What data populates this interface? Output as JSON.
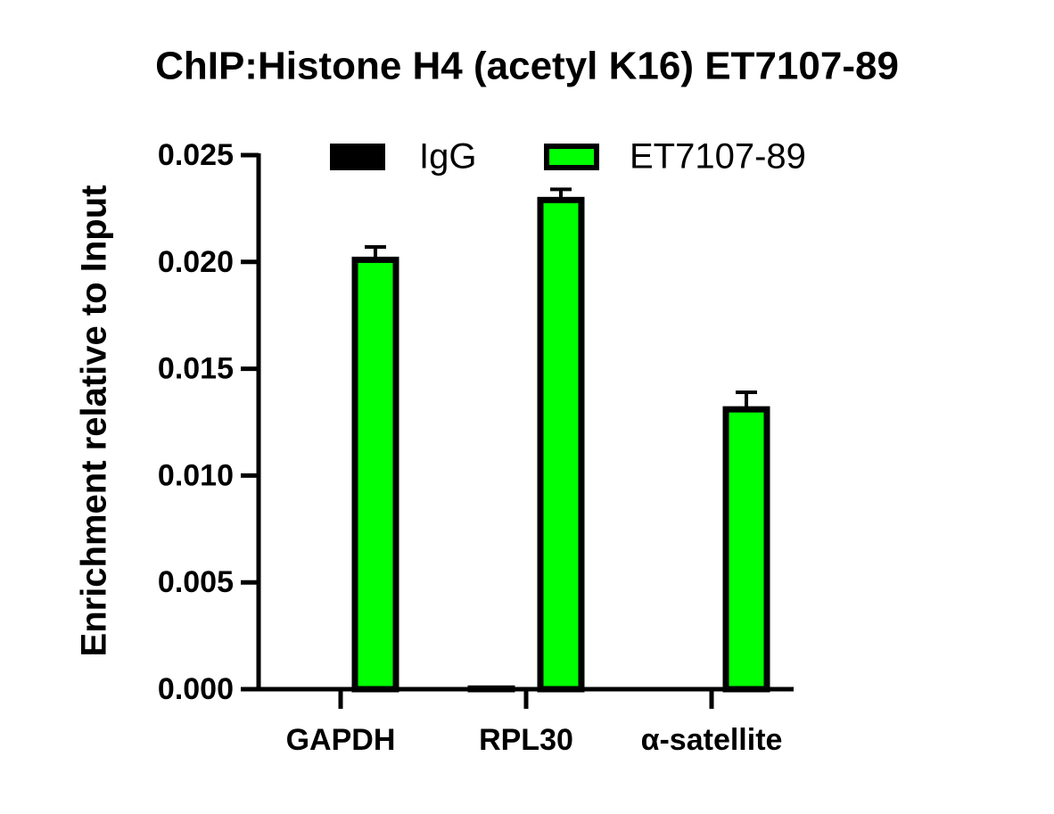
{
  "chart_data": {
    "type": "bar",
    "title": "ChIP:Histone H4 (acetyl K16) ET7107-89",
    "y_label": "Enrichment relative to Input",
    "categories": [
      "GAPDH",
      "RPL30",
      "α-satellite"
    ],
    "series": [
      {
        "name": "IgG",
        "color": "#000000",
        "values": [
          0,
          3e-05,
          0
        ]
      },
      {
        "name": "ET7107-89",
        "color": "#00ff00",
        "values": [
          0.0201,
          0.0229,
          0.0131
        ],
        "errors": [
          0.0006,
          0.0005,
          0.0008
        ]
      }
    ],
    "ylim": [
      0,
      0.025
    ],
    "yticks": [
      {
        "value": 0,
        "label": "0.000"
      },
      {
        "value": 0.005,
        "label": "0.005"
      },
      {
        "value": 0.01,
        "label": "0.010"
      },
      {
        "value": 0.015,
        "label": "0.015"
      },
      {
        "value": 0.02,
        "label": "0.020"
      },
      {
        "value": 0.025,
        "label": "0.025"
      }
    ],
    "legend": "top"
  }
}
